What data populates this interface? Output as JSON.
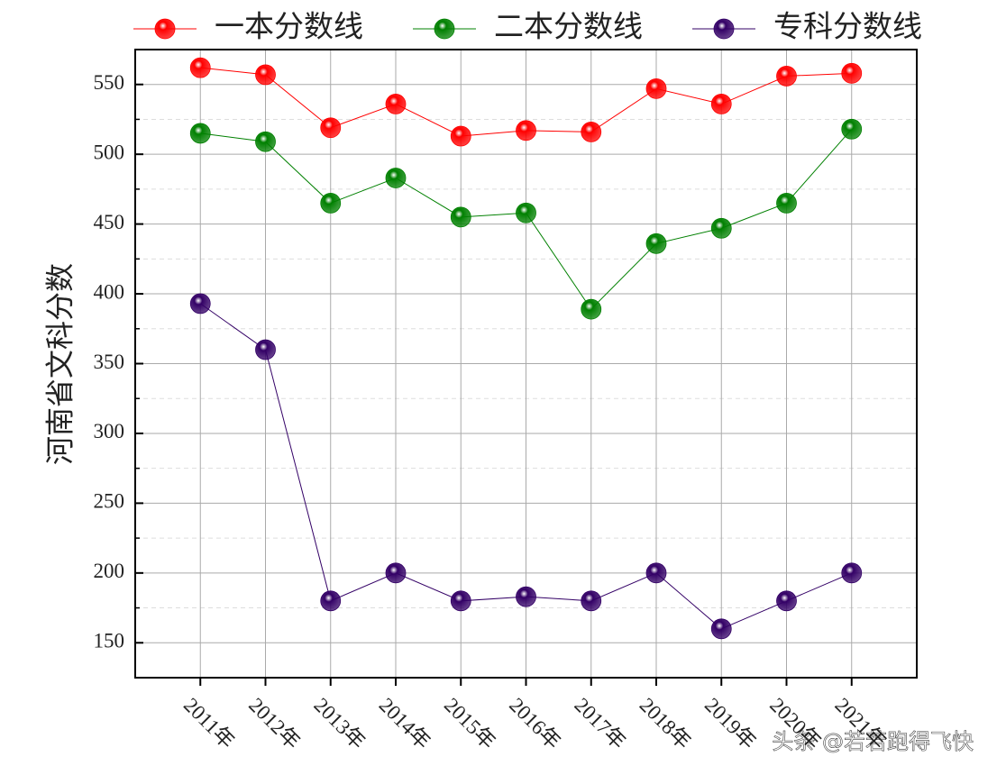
{
  "chart_data": {
    "type": "line",
    "ylabel": "河南省文科分数",
    "categories": [
      "2011年",
      "2012年",
      "2013年",
      "2014年",
      "2015年",
      "2016年",
      "2017年",
      "2018年",
      "2019年",
      "2020年",
      "2021年"
    ],
    "series": [
      {
        "name": "一本分数线",
        "color": "#ff0000",
        "values": [
          562,
          557,
          519,
          536,
          513,
          517,
          516,
          547,
          536,
          556,
          558
        ]
      },
      {
        "name": "二本分数线",
        "color": "#008000",
        "values": [
          515,
          509,
          465,
          483,
          455,
          458,
          389,
          436,
          447,
          465,
          518
        ]
      },
      {
        "name": "专科分数线",
        "color": "#330066",
        "values": [
          393,
          360,
          180,
          200,
          180,
          183,
          180,
          200,
          160,
          180,
          200
        ]
      }
    ],
    "ylim": [
      125,
      575
    ],
    "yticks": [
      150,
      200,
      250,
      300,
      350,
      400,
      450,
      500,
      550
    ],
    "yminorticks": [
      175,
      225,
      275,
      325,
      375,
      425,
      475,
      525
    ],
    "grid": true,
    "legend": "top",
    "watermark": "头条 @若若跑得飞快"
  }
}
